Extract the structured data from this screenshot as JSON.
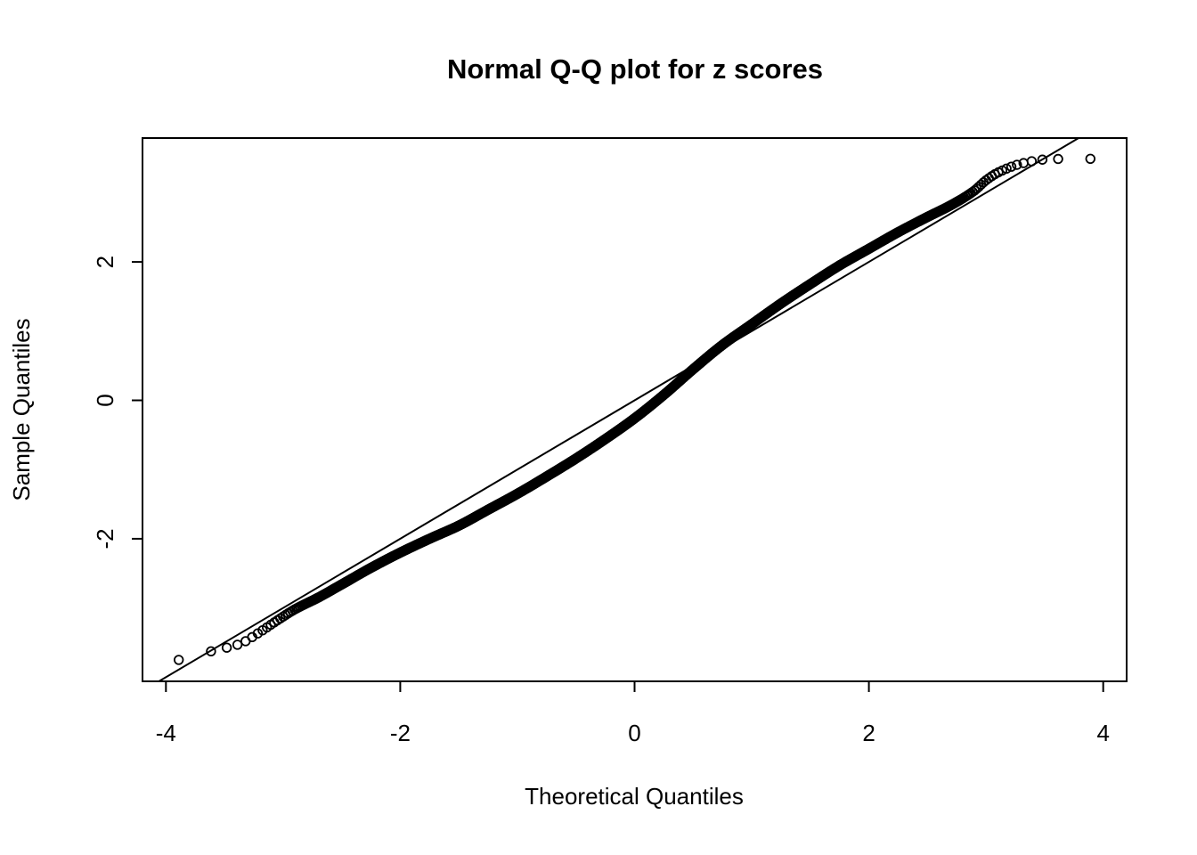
{
  "title": "Normal Q-Q plot for z scores",
  "chart_data": {
    "type": "scatter",
    "variant": "normal-qq-plot",
    "title": "Normal Q-Q plot for z scores",
    "xlabel": "Theoretical Quantiles",
    "ylabel": "Sample Quantiles",
    "xlim": [
      -4.2,
      4.2
    ],
    "ylim": [
      -4.06,
      3.79
    ],
    "x_ticks": [
      -4,
      -2,
      0,
      2,
      4
    ],
    "y_ticks": [
      -2,
      0,
      2
    ],
    "n_points": 10000,
    "marker": "open-circle",
    "point_color": "#000000",
    "background": "#ffffff",
    "grid": false,
    "legend": false,
    "reference_line": {
      "slope": 1,
      "intercept": 0
    },
    "qq_curve_knots": {
      "theoretical": [
        -3.89,
        -3.6,
        -3.37,
        -3.2,
        -3.05,
        -2.9,
        -2.7,
        -2.5,
        -2.25,
        -2.0,
        -1.75,
        -1.5,
        -1.25,
        -1.0,
        -0.75,
        -0.5,
        -0.25,
        0,
        0.25,
        0.5,
        0.75,
        1.0,
        1.25,
        1.5,
        1.75,
        2.0,
        2.25,
        2.5,
        2.7,
        2.9,
        3.0,
        3.1,
        3.3,
        3.5,
        3.7,
        3.89
      ],
      "sample": [
        -3.75,
        -3.62,
        -3.52,
        -3.35,
        -3.18,
        -3.02,
        -2.85,
        -2.66,
        -2.42,
        -2.2,
        -2.0,
        -1.81,
        -1.58,
        -1.35,
        -1.1,
        -0.84,
        -0.56,
        -0.26,
        0.08,
        0.45,
        0.8,
        1.1,
        1.4,
        1.68,
        1.95,
        2.19,
        2.43,
        2.65,
        2.82,
        3.03,
        3.18,
        3.29,
        3.42,
        3.48,
        3.49,
        3.49
      ]
    }
  }
}
